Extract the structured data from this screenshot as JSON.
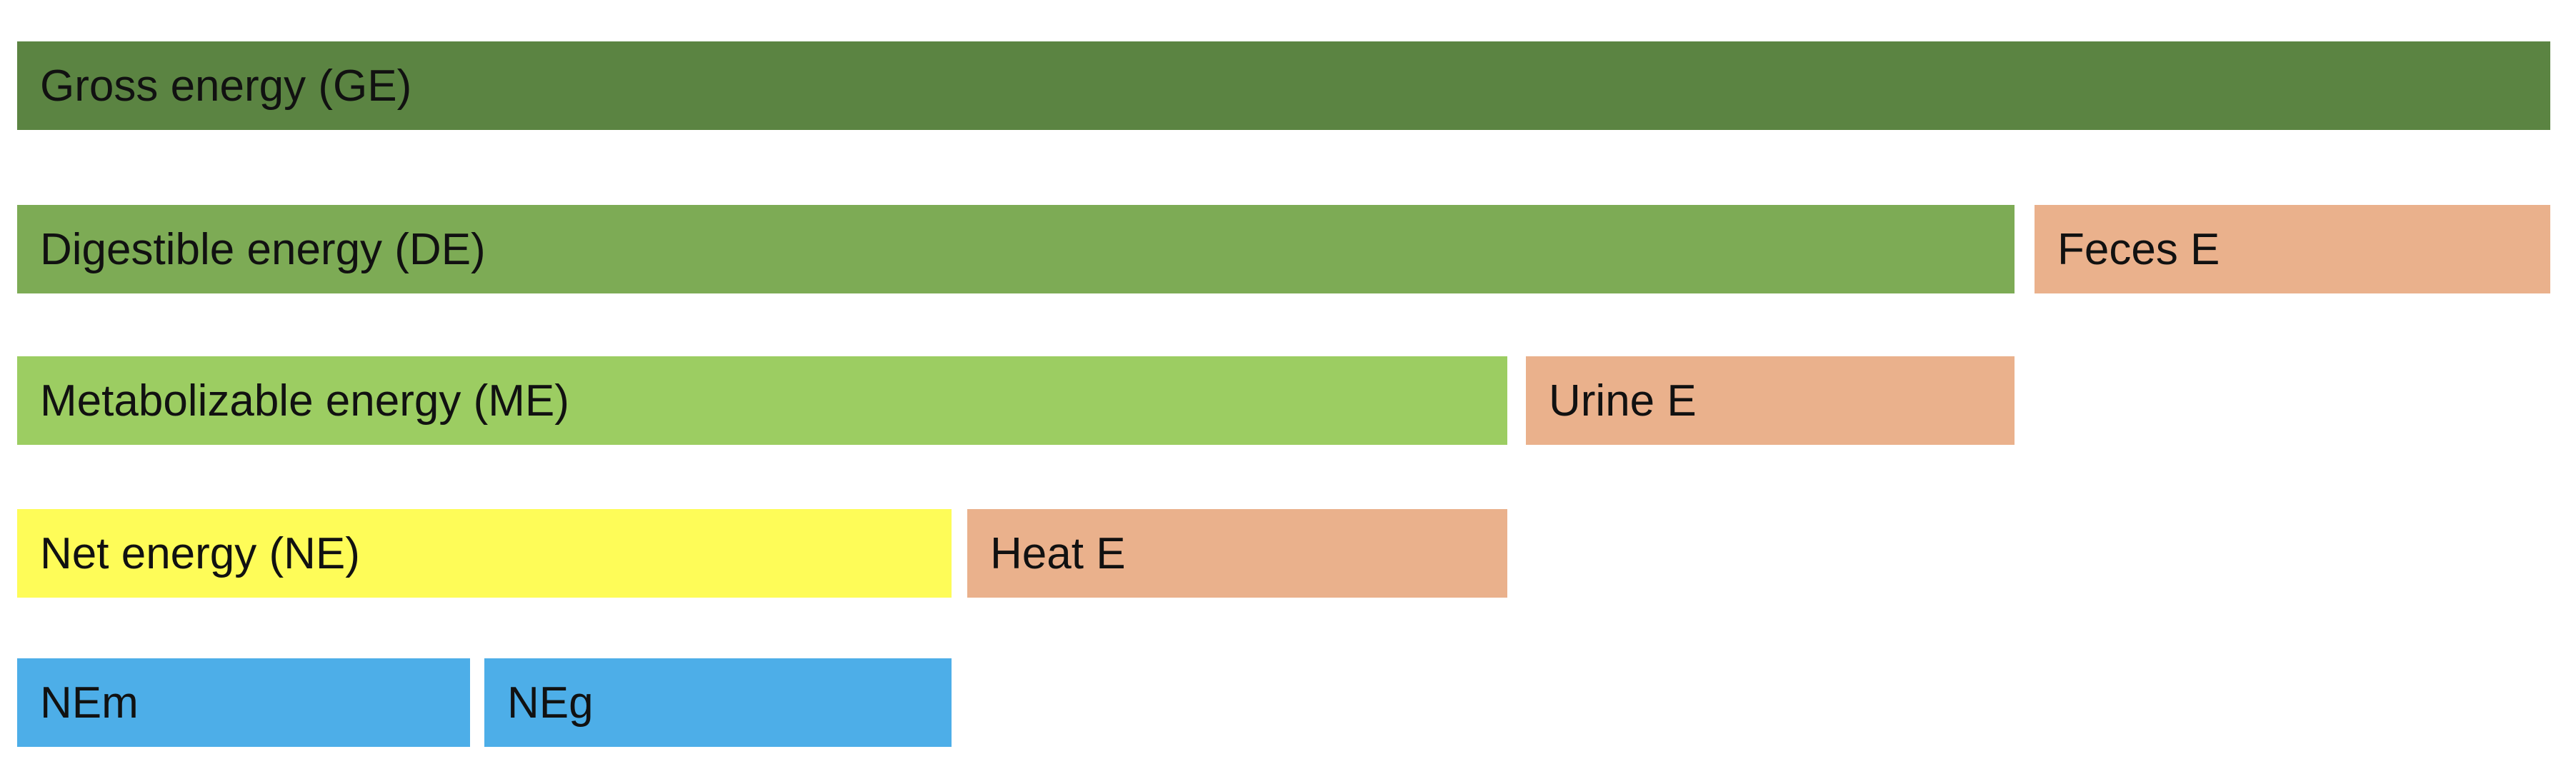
{
  "diagram": {
    "rows": [
      {
        "boxes": [
          {
            "id": "gross-energy",
            "label": "Gross energy (GE)",
            "color": "#5b8442"
          }
        ]
      },
      {
        "boxes": [
          {
            "id": "digestible-energy",
            "label": "Digestible energy (DE)",
            "color": "#7dab55"
          },
          {
            "id": "feces-energy",
            "label": "Feces E",
            "color": "#eab18c"
          }
        ]
      },
      {
        "boxes": [
          {
            "id": "metabolizable-energy",
            "label": "Metabolizable energy (ME)",
            "color": "#9ccd62"
          },
          {
            "id": "urine-energy",
            "label": "Urine E",
            "color": "#eab18c"
          }
        ]
      },
      {
        "boxes": [
          {
            "id": "net-energy",
            "label": "Net energy (NE)",
            "color": "#fefc58"
          },
          {
            "id": "heat-energy",
            "label": "Heat E",
            "color": "#eab18c"
          }
        ]
      },
      {
        "boxes": [
          {
            "id": "nem",
            "label": "NEm",
            "color": "#4daee8"
          },
          {
            "id": "neg",
            "label": "NEg",
            "color": "#4daee8"
          }
        ]
      }
    ]
  }
}
